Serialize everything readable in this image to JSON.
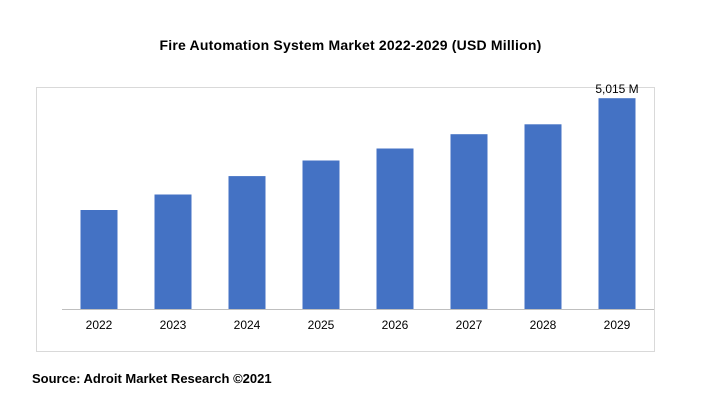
{
  "chart_data": {
    "type": "bar",
    "title": "Fire Automation System Market 2022-2029 (USD Million)",
    "categories": [
      "2022",
      "2023",
      "2024",
      "2025",
      "2026",
      "2027",
      "2028",
      "2029"
    ],
    "values": [
      2355,
      2723,
      3161,
      3533,
      3819,
      4158,
      4393,
      5015
    ],
    "ylim": [
      0,
      5400
    ],
    "annotations": [
      {
        "category": "2029",
        "text": "5,015 M"
      }
    ],
    "bar_color": "#4472c4",
    "axis_color": "#bfbfbf",
    "grid": false,
    "xlabel": "",
    "ylabel": ""
  },
  "footer": {
    "source": "Source: Adroit Market Research ©2021"
  }
}
